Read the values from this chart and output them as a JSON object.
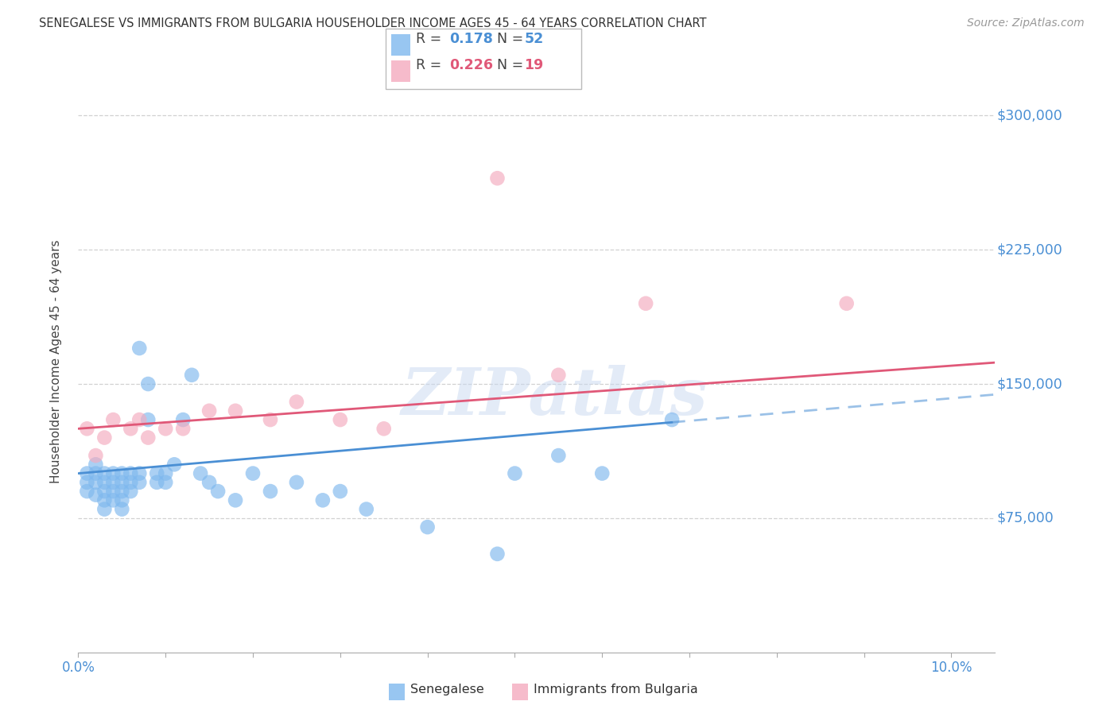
{
  "title": "SENEGALESE VS IMMIGRANTS FROM BULGARIA HOUSEHOLDER INCOME AGES 45 - 64 YEARS CORRELATION CHART",
  "source": "Source: ZipAtlas.com",
  "ylabel": "Householder Income Ages 45 - 64 years",
  "y_tick_labels": [
    "$75,000",
    "$150,000",
    "$225,000",
    "$300,000"
  ],
  "y_tick_values": [
    75000,
    150000,
    225000,
    300000
  ],
  "y_min": 0,
  "y_max": 325000,
  "x_min": 0.0,
  "x_max": 0.105,
  "x_ticks": [
    0.0,
    0.01,
    0.02,
    0.03,
    0.04,
    0.05,
    0.06,
    0.07,
    0.08,
    0.09,
    0.1
  ],
  "watermark_text": "ZIPatlas",
  "blue_scatter": "#7EB8EE",
  "pink_scatter": "#F4AABE",
  "line_blue": "#4A8FD4",
  "line_pink": "#E05878",
  "axis_color": "#4A8FD4",
  "title_color": "#333333",
  "background_color": "#FFFFFF",
  "grid_color": "#CCCCCC",
  "r_blue": "0.178",
  "n_blue": "52",
  "r_pink": "0.226",
  "n_pink": "19",
  "senegalese_x": [
    0.001,
    0.001,
    0.001,
    0.002,
    0.002,
    0.002,
    0.002,
    0.003,
    0.003,
    0.003,
    0.003,
    0.003,
    0.004,
    0.004,
    0.004,
    0.004,
    0.005,
    0.005,
    0.005,
    0.005,
    0.005,
    0.006,
    0.006,
    0.006,
    0.007,
    0.007,
    0.007,
    0.008,
    0.008,
    0.009,
    0.009,
    0.01,
    0.01,
    0.011,
    0.012,
    0.013,
    0.014,
    0.015,
    0.016,
    0.018,
    0.02,
    0.022,
    0.025,
    0.028,
    0.03,
    0.033,
    0.04,
    0.048,
    0.05,
    0.055,
    0.06,
    0.068
  ],
  "senegalese_y": [
    100000,
    95000,
    90000,
    100000,
    95000,
    105000,
    88000,
    100000,
    95000,
    90000,
    85000,
    80000,
    100000,
    95000,
    90000,
    85000,
    100000,
    95000,
    90000,
    85000,
    80000,
    100000,
    95000,
    90000,
    170000,
    100000,
    95000,
    150000,
    130000,
    100000,
    95000,
    100000,
    95000,
    105000,
    130000,
    155000,
    100000,
    95000,
    90000,
    85000,
    100000,
    90000,
    95000,
    85000,
    90000,
    80000,
    70000,
    55000,
    100000,
    110000,
    100000,
    130000
  ],
  "bulgaria_x": [
    0.001,
    0.002,
    0.003,
    0.004,
    0.006,
    0.007,
    0.008,
    0.01,
    0.012,
    0.015,
    0.018,
    0.022,
    0.025,
    0.03,
    0.035,
    0.048,
    0.055,
    0.065,
    0.088
  ],
  "bulgaria_y": [
    125000,
    110000,
    120000,
    130000,
    125000,
    130000,
    120000,
    125000,
    125000,
    135000,
    135000,
    130000,
    140000,
    130000,
    125000,
    265000,
    155000,
    195000,
    195000
  ]
}
